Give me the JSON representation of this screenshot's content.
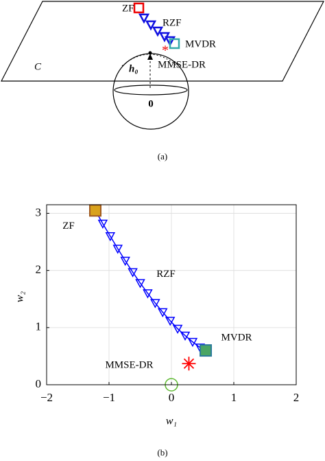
{
  "diagram": {
    "caption": "(a)",
    "set_label": "C",
    "vector_label": "h₀",
    "origin_label": "0",
    "point_labels": [
      "ZF",
      "RZF",
      "MVDR",
      "MMSE-DR"
    ]
  },
  "chart_data": {
    "type": "scatter",
    "caption": "(b)",
    "xlabel": "w₁",
    "ylabel": "w₂",
    "xlim": [
      -2,
      2
    ],
    "ylim": [
      0,
      3.15
    ],
    "xticks": [
      {
        "value": -2,
        "label": "−2"
      },
      {
        "value": -1,
        "label": "−1"
      },
      0,
      1,
      2
    ],
    "yticks": [
      0,
      1,
      2,
      3
    ],
    "grid": true,
    "series": [
      {
        "name": "RZF",
        "color": "#0000ff",
        "marker": "triangle-down",
        "line": true,
        "x": [
          -1.22,
          -1.1,
          -0.98,
          -0.86,
          -0.74,
          -0.62,
          -0.5,
          -0.38,
          -0.26,
          -0.14,
          -0.02,
          0.1,
          0.22,
          0.34,
          0.46,
          0.55
        ],
        "y": [
          3.05,
          2.82,
          2.6,
          2.38,
          2.17,
          1.97,
          1.78,
          1.6,
          1.43,
          1.27,
          1.12,
          0.98,
          0.86,
          0.75,
          0.65,
          0.6
        ]
      },
      {
        "name": "ZF",
        "color": "#d9a21b",
        "marker": "square",
        "x": [
          -1.22
        ],
        "y": [
          3.05
        ]
      },
      {
        "name": "MVDR",
        "color": "#4aa564",
        "marker": "square",
        "x": [
          0.55
        ],
        "y": [
          0.6
        ]
      },
      {
        "name": "MMSE-DR",
        "color": "#ff0000",
        "marker": "star",
        "x": [
          0.28
        ],
        "y": [
          0.37
        ]
      },
      {
        "color": "#5cb82f",
        "marker": "circle",
        "x": [
          0
        ],
        "y": [
          0
        ]
      }
    ]
  }
}
